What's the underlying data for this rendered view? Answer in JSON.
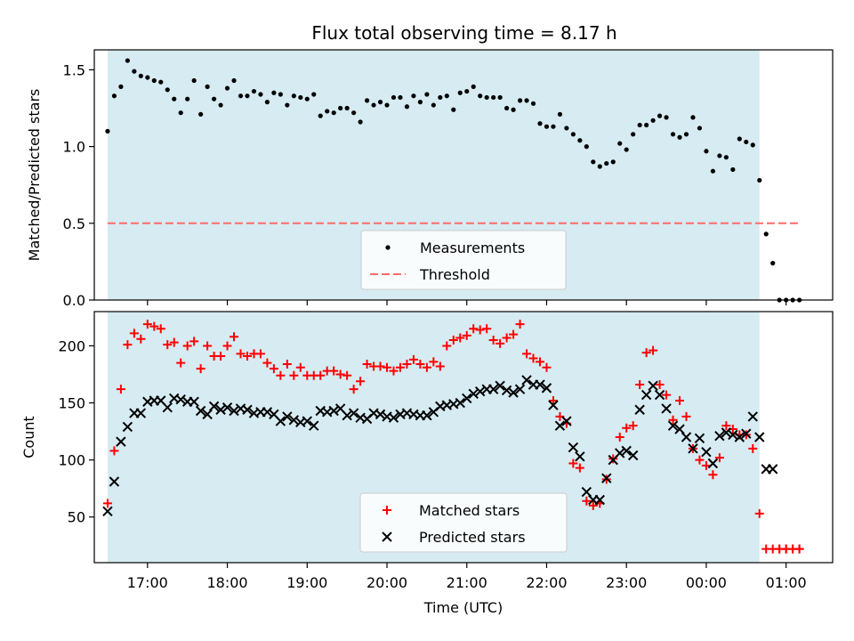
{
  "title": "Flux total observing time = 8.17 h",
  "colors": {
    "shade": "#add8e6",
    "measurement": "#000000",
    "threshold": "#ff6b6b",
    "matched": "#ff0000",
    "predicted": "#000000"
  },
  "chart_data": [
    {
      "type": "scatter",
      "panel": "top",
      "ylabel": "Matched/Predicted stars",
      "xlabel": "",
      "xlim": [
        "16:20",
        "01:35"
      ],
      "ylim": [
        0.0,
        1.63
      ],
      "yticks": [
        0.0,
        0.5,
        1.0,
        1.5
      ],
      "ytick_labels": [
        "0.0",
        "0.5",
        "1.0",
        "1.5"
      ],
      "shaded_span": [
        "16:30",
        "00:40"
      ],
      "legend": {
        "placement": "lower center",
        "entries": [
          {
            "label": "Measurements",
            "marker": "dot",
            "color": "#000000"
          },
          {
            "label": "Threshold",
            "marker": "dashed-line",
            "color": "#ff6b6b"
          }
        ]
      },
      "threshold": {
        "name": "Threshold",
        "y": 0.5,
        "x_range": [
          "16:30",
          "01:10"
        ]
      },
      "series": [
        {
          "name": "Measurements",
          "x": [
            "16:30",
            "16:35",
            "16:40",
            "16:45",
            "16:50",
            "16:55",
            "17:00",
            "17:05",
            "17:10",
            "17:15",
            "17:20",
            "17:25",
            "17:30",
            "17:35",
            "17:40",
            "17:45",
            "17:50",
            "17:55",
            "18:00",
            "18:05",
            "18:10",
            "18:15",
            "18:20",
            "18:25",
            "18:30",
            "18:35",
            "18:40",
            "18:45",
            "18:50",
            "18:55",
            "19:00",
            "19:05",
            "19:10",
            "19:15",
            "19:20",
            "19:25",
            "19:30",
            "19:35",
            "19:40",
            "19:45",
            "19:50",
            "19:55",
            "20:00",
            "20:05",
            "20:10",
            "20:15",
            "20:20",
            "20:25",
            "20:30",
            "20:35",
            "20:40",
            "20:45",
            "20:50",
            "20:55",
            "21:00",
            "21:05",
            "21:10",
            "21:15",
            "21:20",
            "21:25",
            "21:30",
            "21:35",
            "21:40",
            "21:45",
            "21:50",
            "21:55",
            "22:00",
            "22:05",
            "22:10",
            "22:15",
            "22:20",
            "22:25",
            "22:30",
            "22:35",
            "22:40",
            "22:45",
            "22:50",
            "22:55",
            "23:00",
            "23:05",
            "23:10",
            "23:15",
            "23:20",
            "23:25",
            "23:30",
            "23:35",
            "23:40",
            "23:45",
            "23:50",
            "23:55",
            "00:00",
            "00:05",
            "00:10",
            "00:15",
            "00:20",
            "00:25",
            "00:30",
            "00:35",
            "00:40",
            "00:45",
            "00:50",
            "00:55",
            "01:00",
            "01:05",
            "01:10"
          ],
          "values": [
            1.1,
            1.33,
            1.39,
            1.56,
            1.49,
            1.46,
            1.45,
            1.43,
            1.42,
            1.37,
            1.31,
            1.22,
            1.31,
            1.43,
            1.21,
            1.39,
            1.31,
            1.27,
            1.38,
            1.43,
            1.33,
            1.33,
            1.36,
            1.34,
            1.29,
            1.35,
            1.34,
            1.27,
            1.33,
            1.32,
            1.31,
            1.34,
            1.2,
            1.23,
            1.22,
            1.25,
            1.25,
            1.22,
            1.16,
            1.3,
            1.27,
            1.29,
            1.27,
            1.32,
            1.32,
            1.26,
            1.33,
            1.29,
            1.34,
            1.27,
            1.32,
            1.33,
            1.24,
            1.35,
            1.36,
            1.39,
            1.33,
            1.32,
            1.32,
            1.32,
            1.25,
            1.24,
            1.3,
            1.3,
            1.28,
            1.15,
            1.13,
            1.13,
            1.21,
            1.12,
            1.08,
            1.04,
            1.0,
            0.9,
            0.87,
            0.89,
            0.9,
            1.02,
            0.98,
            1.08,
            1.14,
            1.14,
            1.17,
            1.2,
            1.19,
            1.08,
            1.06,
            1.08,
            1.19,
            1.12,
            0.97,
            0.84,
            0.94,
            0.93,
            0.85,
            1.05,
            1.03,
            1.01,
            0.78,
            0.43,
            0.24,
            0.0,
            0.0,
            0.0,
            0.0
          ]
        }
      ]
    },
    {
      "type": "scatter",
      "panel": "bottom",
      "xlabel": "Time (UTC)",
      "ylabel": "Count",
      "xlim": [
        "16:20",
        "01:35"
      ],
      "ylim": [
        10,
        230
      ],
      "yticks": [
        50,
        100,
        150,
        200
      ],
      "ytick_labels": [
        "50",
        "100",
        "150",
        "200"
      ],
      "xticks": [
        "17:00",
        "18:00",
        "19:00",
        "20:00",
        "21:00",
        "22:00",
        "23:00",
        "00:00",
        "01:00"
      ],
      "shaded_span": [
        "16:30",
        "00:40"
      ],
      "legend": {
        "placement": "lower center",
        "entries": [
          {
            "label": "Matched stars",
            "marker": "+",
            "color": "#ff0000"
          },
          {
            "label": "Predicted stars",
            "marker": "x",
            "color": "#000000"
          }
        ]
      },
      "series": [
        {
          "name": "Matched stars",
          "x": [
            "16:30",
            "16:35",
            "16:40",
            "16:45",
            "16:50",
            "16:55",
            "17:00",
            "17:05",
            "17:10",
            "17:15",
            "17:20",
            "17:25",
            "17:30",
            "17:35",
            "17:40",
            "17:45",
            "17:50",
            "17:55",
            "18:00",
            "18:05",
            "18:10",
            "18:15",
            "18:20",
            "18:25",
            "18:30",
            "18:35",
            "18:40",
            "18:45",
            "18:50",
            "18:55",
            "19:00",
            "19:05",
            "19:10",
            "19:15",
            "19:20",
            "19:25",
            "19:30",
            "19:35",
            "19:40",
            "19:45",
            "19:50",
            "19:55",
            "20:00",
            "20:05",
            "20:10",
            "20:15",
            "20:20",
            "20:25",
            "20:30",
            "20:35",
            "20:40",
            "20:45",
            "20:50",
            "20:55",
            "21:00",
            "21:05",
            "21:10",
            "21:15",
            "21:20",
            "21:25",
            "21:30",
            "21:35",
            "21:40",
            "21:45",
            "21:50",
            "21:55",
            "22:00",
            "22:05",
            "22:10",
            "22:15",
            "22:20",
            "22:25",
            "22:30",
            "22:35",
            "22:40",
            "22:45",
            "22:50",
            "22:55",
            "23:00",
            "23:05",
            "23:10",
            "23:15",
            "23:20",
            "23:25",
            "23:30",
            "23:35",
            "23:40",
            "23:45",
            "23:50",
            "23:55",
            "00:00",
            "00:05",
            "00:10",
            "00:15",
            "00:20",
            "00:25",
            "00:30",
            "00:35",
            "00:40",
            "00:45",
            "00:50",
            "00:55",
            "01:00",
            "01:05",
            "01:10"
          ],
          "values": [
            62,
            108,
            162,
            201,
            211,
            206,
            219,
            217,
            215,
            201,
            203,
            185,
            200,
            204,
            180,
            200,
            191,
            191,
            200,
            208,
            193,
            191,
            193,
            193,
            185,
            180,
            174,
            184,
            174,
            181,
            174,
            174,
            174,
            178,
            178,
            175,
            174,
            162,
            169,
            184,
            182,
            182,
            181,
            178,
            181,
            184,
            188,
            184,
            181,
            186,
            182,
            200,
            205,
            207,
            209,
            215,
            214,
            215,
            205,
            202,
            207,
            210,
            219,
            193,
            189,
            186,
            181,
            152,
            138,
            132,
            97,
            93,
            64,
            60,
            62,
            83,
            101,
            120,
            128,
            130,
            166,
            194,
            196,
            166,
            157,
            135,
            152,
            138,
            110,
            100,
            95,
            87,
            102,
            130,
            127,
            122,
            122,
            110,
            53,
            22,
            22,
            22,
            22,
            22,
            22
          ],
          "extra_points": {
            "x": [
              "00:55",
              "01:00",
              "01:05",
              "01:10"
            ],
            "values": [
              22,
              22,
              22,
              22
            ]
          }
        },
        {
          "name": "Predicted stars",
          "x": [
            "16:30",
            "16:35",
            "16:40",
            "16:45",
            "16:50",
            "16:55",
            "17:00",
            "17:05",
            "17:10",
            "17:15",
            "17:20",
            "17:25",
            "17:30",
            "17:35",
            "17:40",
            "17:45",
            "17:50",
            "17:55",
            "18:00",
            "18:05",
            "18:10",
            "18:15",
            "18:20",
            "18:25",
            "18:30",
            "18:35",
            "18:40",
            "18:45",
            "18:50",
            "18:55",
            "19:00",
            "19:05",
            "19:10",
            "19:15",
            "19:20",
            "19:25",
            "19:30",
            "19:35",
            "19:40",
            "19:45",
            "19:50",
            "19:55",
            "20:00",
            "20:05",
            "20:10",
            "20:15",
            "20:20",
            "20:25",
            "20:30",
            "20:35",
            "20:40",
            "20:45",
            "20:50",
            "20:55",
            "21:00",
            "21:05",
            "21:10",
            "21:15",
            "21:20",
            "21:25",
            "21:30",
            "21:35",
            "21:40",
            "21:45",
            "21:50",
            "21:55",
            "22:00",
            "22:05",
            "22:10",
            "22:15",
            "22:20",
            "22:25",
            "22:30",
            "22:35",
            "22:40",
            "22:45",
            "22:50",
            "22:55",
            "23:00",
            "23:05",
            "23:10",
            "23:15",
            "23:20",
            "23:25",
            "23:30",
            "23:35",
            "23:40",
            "23:45",
            "23:50",
            "23:55",
            "00:00",
            "00:05",
            "00:10",
            "00:15",
            "00:20",
            "00:25",
            "00:30",
            "00:35",
            "00:40",
            "00:45",
            "00:50"
          ],
          "values": [
            55,
            81,
            116,
            129,
            141,
            141,
            151,
            152,
            152,
            146,
            154,
            153,
            151,
            151,
            143,
            140,
            147,
            144,
            146,
            143,
            145,
            144,
            141,
            142,
            142,
            140,
            134,
            138,
            135,
            133,
            134,
            130,
            143,
            142,
            143,
            145,
            139,
            141,
            137,
            136,
            141,
            140,
            138,
            137,
            140,
            141,
            140,
            139,
            139,
            142,
            147,
            148,
            149,
            150,
            154,
            158,
            160,
            162,
            162,
            165,
            161,
            159,
            162,
            170,
            166,
            166,
            163,
            148,
            130,
            134,
            111,
            103,
            72,
            65,
            65,
            84,
            100,
            106,
            108,
            104,
            144,
            157,
            165,
            157,
            145,
            130,
            127,
            120,
            110,
            119,
            107,
            97,
            121,
            124,
            122,
            120,
            123,
            138,
            120,
            92,
            92
          ]
        }
      ]
    }
  ]
}
